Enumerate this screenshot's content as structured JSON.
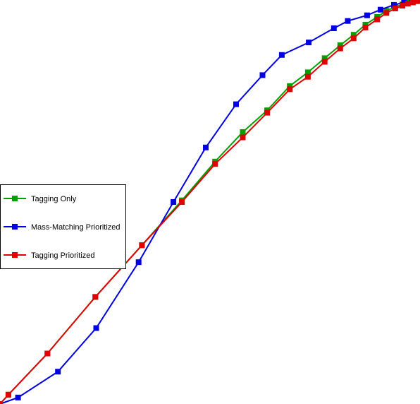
{
  "chart_data": {
    "type": "line",
    "title": "",
    "xlabel": "",
    "ylabel": "",
    "xlim": [
      0,
      1
    ],
    "ylim": [
      0,
      1
    ],
    "grid": false,
    "legend_position": "middle-left",
    "series": [
      {
        "name": "Tagging Only",
        "color": "#00a000",
        "x": [
          0.0,
          0.02,
          0.113,
          0.227,
          0.338,
          0.433,
          0.512,
          0.578,
          0.636,
          0.69,
          0.733,
          0.773,
          0.81,
          0.842,
          0.87,
          0.898,
          0.92,
          0.941,
          0.958,
          0.971,
          0.983,
          0.993,
          1.0
        ],
        "y": [
          0.0,
          0.023,
          0.125,
          0.265,
          0.393,
          0.504,
          0.6,
          0.673,
          0.727,
          0.787,
          0.821,
          0.856,
          0.888,
          0.914,
          0.939,
          0.958,
          0.973,
          0.983,
          0.989,
          0.993,
          0.996,
          0.998,
          1.0
        ]
      },
      {
        "name": "Mass-Matching Prioritized",
        "color": "#0000e0",
        "x": [
          0.0,
          0.043,
          0.138,
          0.229,
          0.33,
          0.413,
          0.49,
          0.562,
          0.625,
          0.671,
          0.735,
          0.795,
          0.828,
          0.874,
          0.906,
          0.938,
          0.962,
          0.981,
          1.0
        ],
        "y": [
          0.0,
          0.016,
          0.08,
          0.188,
          0.351,
          0.5,
          0.635,
          0.742,
          0.814,
          0.864,
          0.895,
          0.93,
          0.948,
          0.962,
          0.976,
          0.988,
          0.994,
          0.997,
          1.0
        ]
      },
      {
        "name": "Tagging Prioritized",
        "color": "#e00000",
        "x": [
          0.0,
          0.02,
          0.113,
          0.227,
          0.338,
          0.433,
          0.512,
          0.578,
          0.636,
          0.69,
          0.733,
          0.773,
          0.81,
          0.842,
          0.87,
          0.898,
          0.92,
          0.941,
          0.958,
          0.971,
          0.983,
          0.993,
          1.0
        ],
        "y": [
          0.0,
          0.023,
          0.125,
          0.265,
          0.393,
          0.5,
          0.594,
          0.66,
          0.721,
          0.779,
          0.81,
          0.847,
          0.88,
          0.905,
          0.932,
          0.952,
          0.968,
          0.979,
          0.986,
          0.991,
          0.994,
          0.997,
          1.0
        ]
      }
    ]
  }
}
